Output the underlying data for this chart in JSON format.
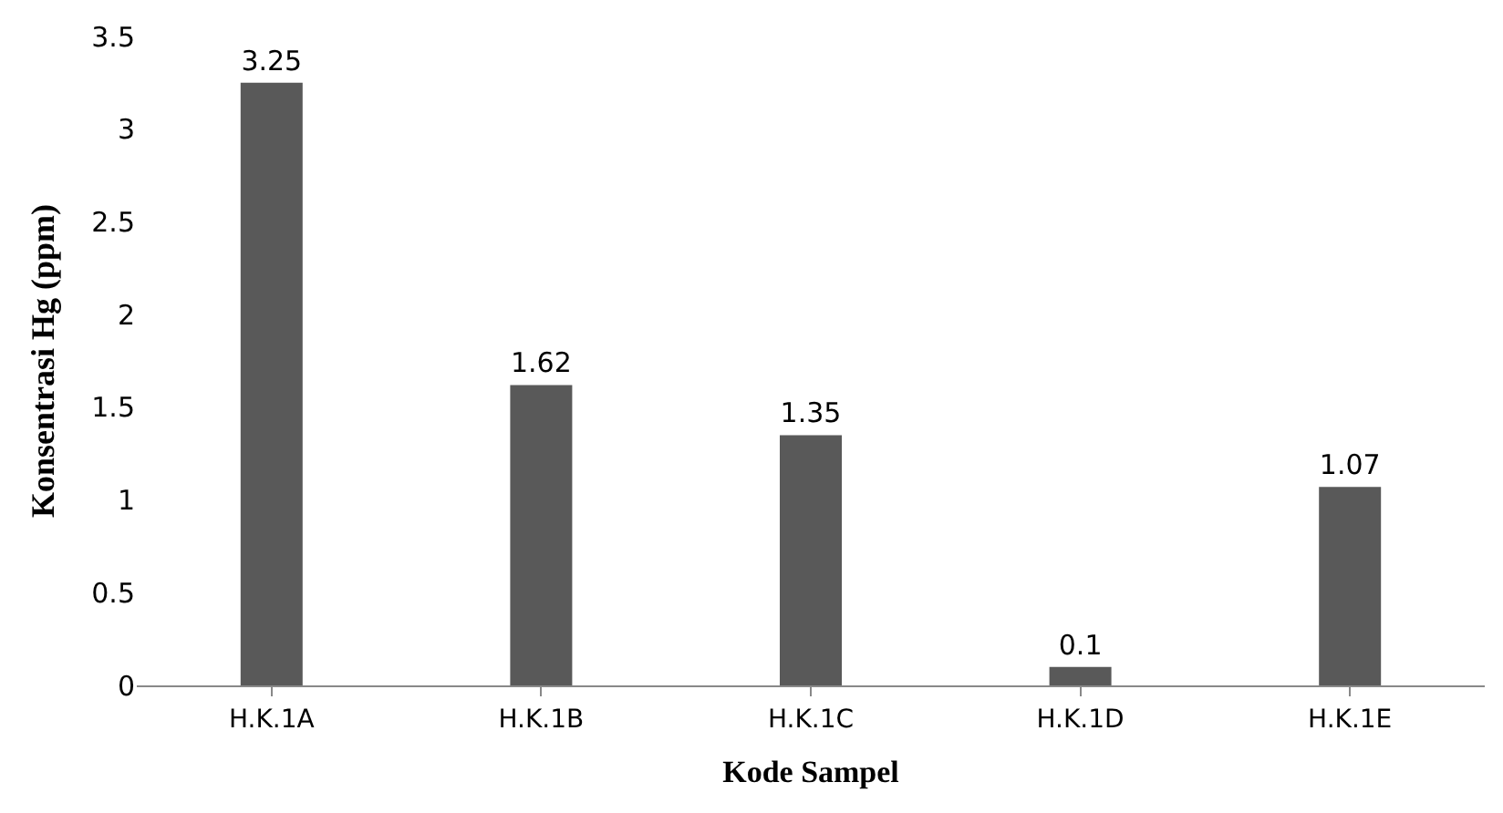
{
  "chart_data": {
    "type": "bar",
    "xlabel": "Kode Sampel",
    "ylabel": "Konsentrasi Hg (ppm)",
    "categories": [
      "H.K.1A",
      "H.K.1B",
      "H.K.1C",
      "H.K.1D",
      "H.K.1E"
    ],
    "values": [
      3.25,
      1.62,
      1.35,
      0.1,
      1.07
    ],
    "color": "#595959",
    "ylim": [
      0,
      3.5
    ],
    "yticks": [
      0,
      0.5,
      1,
      1.5,
      2,
      2.5,
      3,
      3.5
    ],
    "data_labels": true
  }
}
